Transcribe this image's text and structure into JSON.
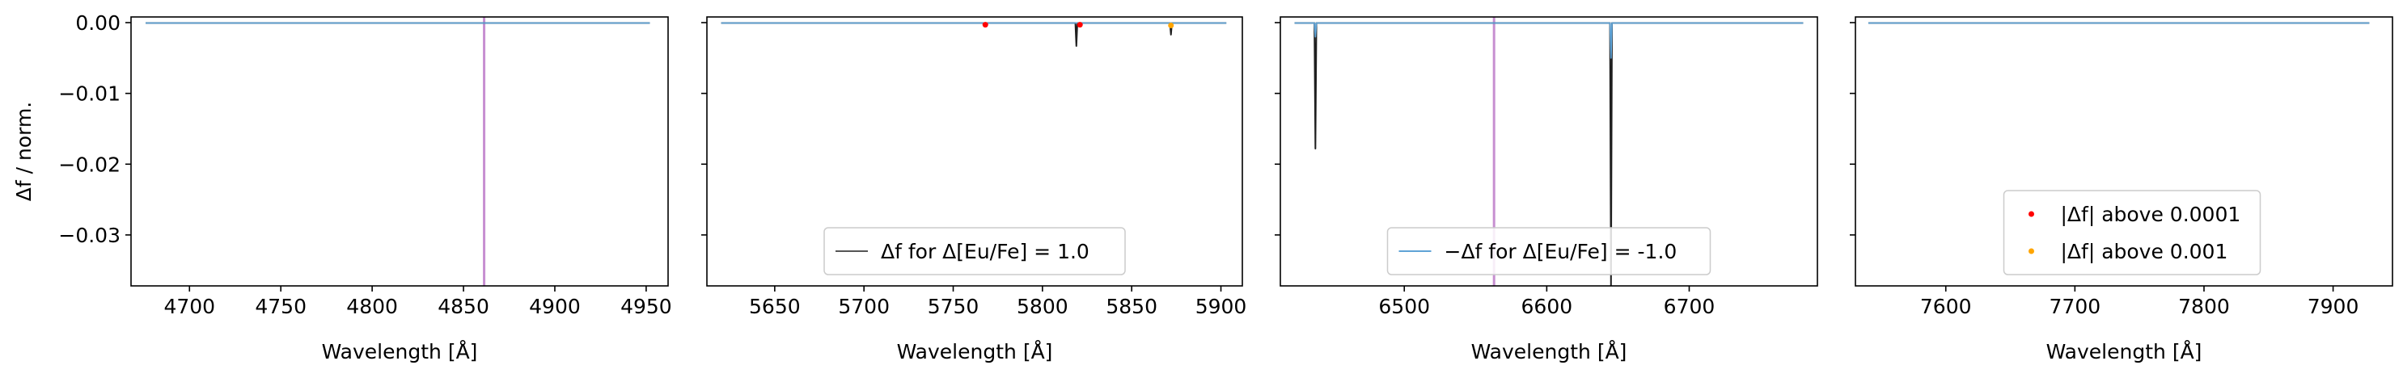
{
  "chart_data": [
    {
      "type": "line",
      "xlabel": "Wavelength [Å]",
      "ylabel": "Δf / norm.",
      "xlim": [
        4668,
        4962
      ],
      "ylim": [
        -0.0372,
        0.0008
      ],
      "xticks": [
        4700,
        4750,
        4800,
        4850,
        4900,
        4950
      ],
      "yticks": [
        0.0,
        -0.01,
        -0.02,
        -0.03
      ],
      "ytick_labels": [
        "0.00",
        "−0.01",
        "−0.02",
        "−0.03"
      ],
      "x_range": [
        4676,
        4952
      ],
      "vlines": [
        {
          "x": 4861.3,
          "color": "#c78fd1"
        }
      ],
      "series": [
        {
          "style": "solid",
          "color": "#1f1f1f",
          "dips": []
        },
        {
          "style": "solid",
          "color": "#5fa3d6",
          "dips": []
        }
      ],
      "highlight_points": [],
      "legend": null
    },
    {
      "type": "line",
      "xlabel": "Wavelength [Å]",
      "ylabel": "",
      "xlim": [
        5612,
        5912
      ],
      "ylim": [
        -0.0372,
        0.0008
      ],
      "xticks": [
        5650,
        5700,
        5750,
        5800,
        5850,
        5900
      ],
      "x_range": [
        5620,
        5903
      ],
      "vlines": [],
      "series": [
        {
          "name": "Δf for Δ[Eu/Fe] = 1.0",
          "style": "solid",
          "color": "#1f1f1f",
          "dips": [
            {
              "x": 5768,
              "depth": -0.0004
            },
            {
              "x": 5819,
              "depth": -0.0033
            },
            {
              "x": 5821,
              "depth": -0.0003
            },
            {
              "x": 5872,
              "depth": -0.0017
            }
          ]
        },
        {
          "style": "solid",
          "color": "#5fa3d6",
          "dips": []
        }
      ],
      "highlight_points": [
        {
          "x": 5768,
          "y": -0.0003,
          "color": "red"
        },
        {
          "x": 5821,
          "y": -0.0003,
          "color": "red"
        },
        {
          "x": 5872,
          "y": -0.0004,
          "color": "orange"
        }
      ],
      "legend": {
        "placement": "lower-center",
        "entries": [
          {
            "label": "Δf for Δ[Eu/Fe] = 1.0",
            "marker": "line",
            "color": "#555555"
          }
        ]
      }
    },
    {
      "type": "line",
      "xlabel": "Wavelength [Å]",
      "ylabel": "",
      "xlim": [
        6413,
        6790
      ],
      "ylim": [
        -0.0372,
        0.0008
      ],
      "xticks": [
        6500,
        6600,
        6700
      ],
      "x_range": [
        6423,
        6780
      ],
      "vlines": [
        {
          "x": 6563,
          "color": "#c78fd1"
        }
      ],
      "series": [
        {
          "style": "solid",
          "color": "#1f1f1f",
          "dips": [
            {
              "x": 6437.6,
              "depth": -0.0178
            },
            {
              "x": 6645.1,
              "depth": -0.0372
            }
          ]
        },
        {
          "name": "−Δf for Δ[Eu/Fe] = -1.0",
          "style": "solid",
          "color": "#5fa3d6",
          "dips": [
            {
              "x": 6437.6,
              "depth": -0.002
            },
            {
              "x": 6645.1,
              "depth": -0.005
            }
          ]
        }
      ],
      "highlight_points": [],
      "legend": {
        "placement": "lower-center",
        "entries": [
          {
            "label": "−Δf for Δ[Eu/Fe] = -1.0",
            "marker": "line",
            "color": "#5fa3d6"
          }
        ]
      }
    },
    {
      "type": "line",
      "xlabel": "Wavelength [Å]",
      "ylabel": "",
      "xlim": [
        7530,
        7946
      ],
      "ylim": [
        -0.0372,
        0.0008
      ],
      "xticks": [
        7600,
        7700,
        7800,
        7900
      ],
      "x_range": [
        7540,
        7928
      ],
      "vlines": [],
      "series": [
        {
          "style": "solid",
          "color": "#1f1f1f",
          "dips": []
        },
        {
          "style": "solid",
          "color": "#5fa3d6",
          "dips": []
        }
      ],
      "highlight_points": [],
      "legend": {
        "placement": "lower-center",
        "entries": [
          {
            "label": "|Δf| above 0.0001",
            "marker": "dot",
            "color": "red"
          },
          {
            "label": "|Δf| above 0.001",
            "marker": "dot",
            "color": "orange"
          }
        ]
      }
    }
  ]
}
